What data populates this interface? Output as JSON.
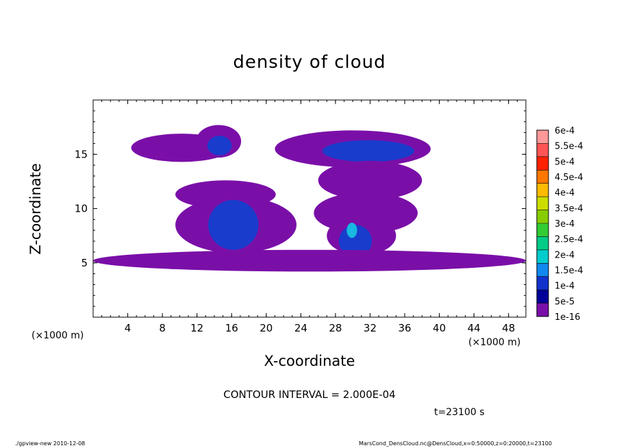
{
  "chart_data": {
    "type": "heatmap",
    "title": "density of cloud",
    "xlabel": "X-coordinate",
    "ylabel": "Z-coordinate",
    "x_unit_left": "(×1000 m)",
    "x_unit_right": "(×1000 m)",
    "xlim": [
      0,
      50
    ],
    "ylim": [
      0,
      20
    ],
    "x_ticks": [
      "4",
      "8",
      "12",
      "16",
      "20",
      "24",
      "28",
      "32",
      "36",
      "40",
      "44",
      "48"
    ],
    "y_ticks": [
      "5",
      "10",
      "15"
    ],
    "colorbar_labels": [
      "6e-4",
      "5.5e-4",
      "5e-4",
      "4.5e-4",
      "4e-4",
      "3.5e-4",
      "3e-4",
      "2.5e-4",
      "2e-4",
      "1.5e-4",
      "1e-4",
      "5e-5",
      "1e-16"
    ],
    "colorbar_colors": [
      "#ff9999",
      "#ff5555",
      "#ff2200",
      "#ff7700",
      "#ffbb00",
      "#ccdd00",
      "#88cc00",
      "#33cc33",
      "#00cc88",
      "#00cccc",
      "#1188ee",
      "#1133cc",
      "#000099",
      "#7a0fa8"
    ],
    "contour_interval": "CONTOUR INTERVAL = 2.000E-04",
    "time_label": "t=23100 s",
    "cloud_regions": [
      {
        "cx": 10.2,
        "cz": 15.6,
        "rx": 5.8,
        "rz": 1.3,
        "level": "low"
      },
      {
        "cx": 14.5,
        "cz": 16.2,
        "rx": 2.6,
        "rz": 1.5,
        "level": "low"
      },
      {
        "cx": 14.6,
        "cz": 15.8,
        "rx": 1.4,
        "rz": 0.9,
        "level": "mid"
      },
      {
        "cx": 30.0,
        "cz": 15.5,
        "rx": 9.0,
        "rz": 1.7,
        "level": "low"
      },
      {
        "cx": 31.8,
        "cz": 15.3,
        "rx": 5.3,
        "rz": 1.0,
        "level": "mid"
      },
      {
        "cx": 32.0,
        "cz": 12.6,
        "rx": 6.0,
        "rz": 1.8,
        "level": "low"
      },
      {
        "cx": 31.5,
        "cz": 9.6,
        "rx": 6.0,
        "rz": 1.9,
        "level": "low"
      },
      {
        "cx": 15.3,
        "cz": 11.3,
        "rx": 5.8,
        "rz": 1.3,
        "level": "low"
      },
      {
        "cx": 16.5,
        "cz": 8.5,
        "rx": 7.0,
        "rz": 2.6,
        "level": "low"
      },
      {
        "cx": 16.2,
        "cz": 8.5,
        "rx": 2.9,
        "rz": 2.3,
        "level": "mid"
      },
      {
        "cx": 31.0,
        "cz": 7.5,
        "rx": 4.0,
        "rz": 1.8,
        "level": "low"
      },
      {
        "cx": 30.3,
        "cz": 7.0,
        "rx": 1.9,
        "rz": 1.5,
        "level": "mid"
      },
      {
        "cx": 29.9,
        "cz": 8.0,
        "rx": 0.6,
        "rz": 0.7,
        "level": "high"
      },
      {
        "cx": 25.0,
        "cz": 5.2,
        "rx": 25.0,
        "rz": 1.0,
        "level": "low"
      }
    ]
  },
  "footer": {
    "left": "./gpview-new  2010-12-08",
    "right": "MarsCond_DensCloud.nc@DensCloud,x=0:50000,z=0:20000,t=23100"
  }
}
